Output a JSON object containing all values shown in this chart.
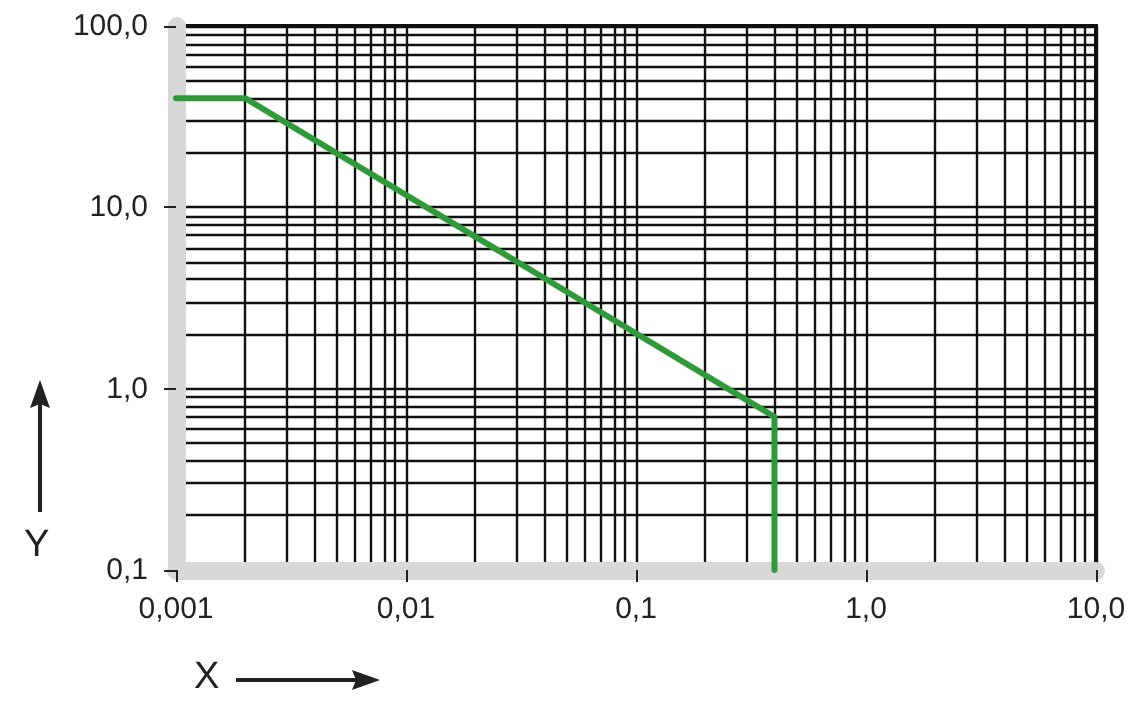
{
  "chart_data": {
    "type": "line",
    "xlabel": "X",
    "ylabel": "Y",
    "log": "xy",
    "grid": true,
    "marker": "none",
    "line_style": "solid",
    "series": [
      {
        "color": "#2e9a3a",
        "x": [
          0.001,
          0.002,
          0.4,
          0.4
        ],
        "values": [
          40,
          40,
          0.7,
          0.1
        ]
      }
    ],
    "xlim": [
      0.001,
      10
    ],
    "ylim": [
      0.1,
      100
    ],
    "xticks": [
      {
        "value": 0.001,
        "label": "0,001"
      },
      {
        "value": 0.002,
        "label": null
      },
      {
        "value": 0.003,
        "label": null
      },
      {
        "value": 0.004,
        "label": null
      },
      {
        "value": 0.005,
        "label": null
      },
      {
        "value": 0.006,
        "label": null
      },
      {
        "value": 0.007,
        "label": null
      },
      {
        "value": 0.008,
        "label": null
      },
      {
        "value": 0.009,
        "label": null
      },
      {
        "value": 0.01,
        "label": "0,01"
      },
      {
        "value": 0.02,
        "label": null
      },
      {
        "value": 0.03,
        "label": null
      },
      {
        "value": 0.04,
        "label": null
      },
      {
        "value": 0.05,
        "label": null
      },
      {
        "value": 0.06,
        "label": null
      },
      {
        "value": 0.07,
        "label": null
      },
      {
        "value": 0.08,
        "label": null
      },
      {
        "value": 0.09,
        "label": null
      },
      {
        "value": 0.1,
        "label": "0,1"
      },
      {
        "value": 0.2,
        "label": null
      },
      {
        "value": 0.3,
        "label": null
      },
      {
        "value": 0.4,
        "label": null
      },
      {
        "value": 0.5,
        "label": null
      },
      {
        "value": 0.6,
        "label": null
      },
      {
        "value": 0.7,
        "label": null
      },
      {
        "value": 0.8,
        "label": null
      },
      {
        "value": 0.9,
        "label": null
      },
      {
        "value": 1,
        "label": "1,0"
      },
      {
        "value": 2,
        "label": null
      },
      {
        "value": 3,
        "label": null
      },
      {
        "value": 4,
        "label": null
      },
      {
        "value": 5,
        "label": null
      },
      {
        "value": 6,
        "label": null
      },
      {
        "value": 7,
        "label": null
      },
      {
        "value": 8,
        "label": null
      },
      {
        "value": 9,
        "label": null
      },
      {
        "value": 10,
        "label": "10,0"
      }
    ],
    "yticks": [
      {
        "value": 0.1,
        "label": "0,1"
      },
      {
        "value": 0.2,
        "label": null
      },
      {
        "value": 0.3,
        "label": null
      },
      {
        "value": 0.4,
        "label": null
      },
      {
        "value": 0.5,
        "label": null
      },
      {
        "value": 0.6,
        "label": null
      },
      {
        "value": 0.7,
        "label": null
      },
      {
        "value": 0.8,
        "label": null
      },
      {
        "value": 0.9,
        "label": null
      },
      {
        "value": 1,
        "label": "1,0"
      },
      {
        "value": 2,
        "label": null
      },
      {
        "value": 3,
        "label": null
      },
      {
        "value": 4,
        "label": null
      },
      {
        "value": 5,
        "label": null
      },
      {
        "value": 6,
        "label": null
      },
      {
        "value": 7,
        "label": null
      },
      {
        "value": 8,
        "label": null
      },
      {
        "value": 9,
        "label": null
      },
      {
        "value": 10,
        "label": "10,0"
      },
      {
        "value": 20,
        "label": null
      },
      {
        "value": 30,
        "label": null
      },
      {
        "value": 40,
        "label": null
      },
      {
        "value": 50,
        "label": null
      },
      {
        "value": 60,
        "label": null
      },
      {
        "value": 70,
        "label": null
      },
      {
        "value": 80,
        "label": null
      },
      {
        "value": 90,
        "label": null
      },
      {
        "value": 100,
        "label": "100,0"
      }
    ]
  }
}
